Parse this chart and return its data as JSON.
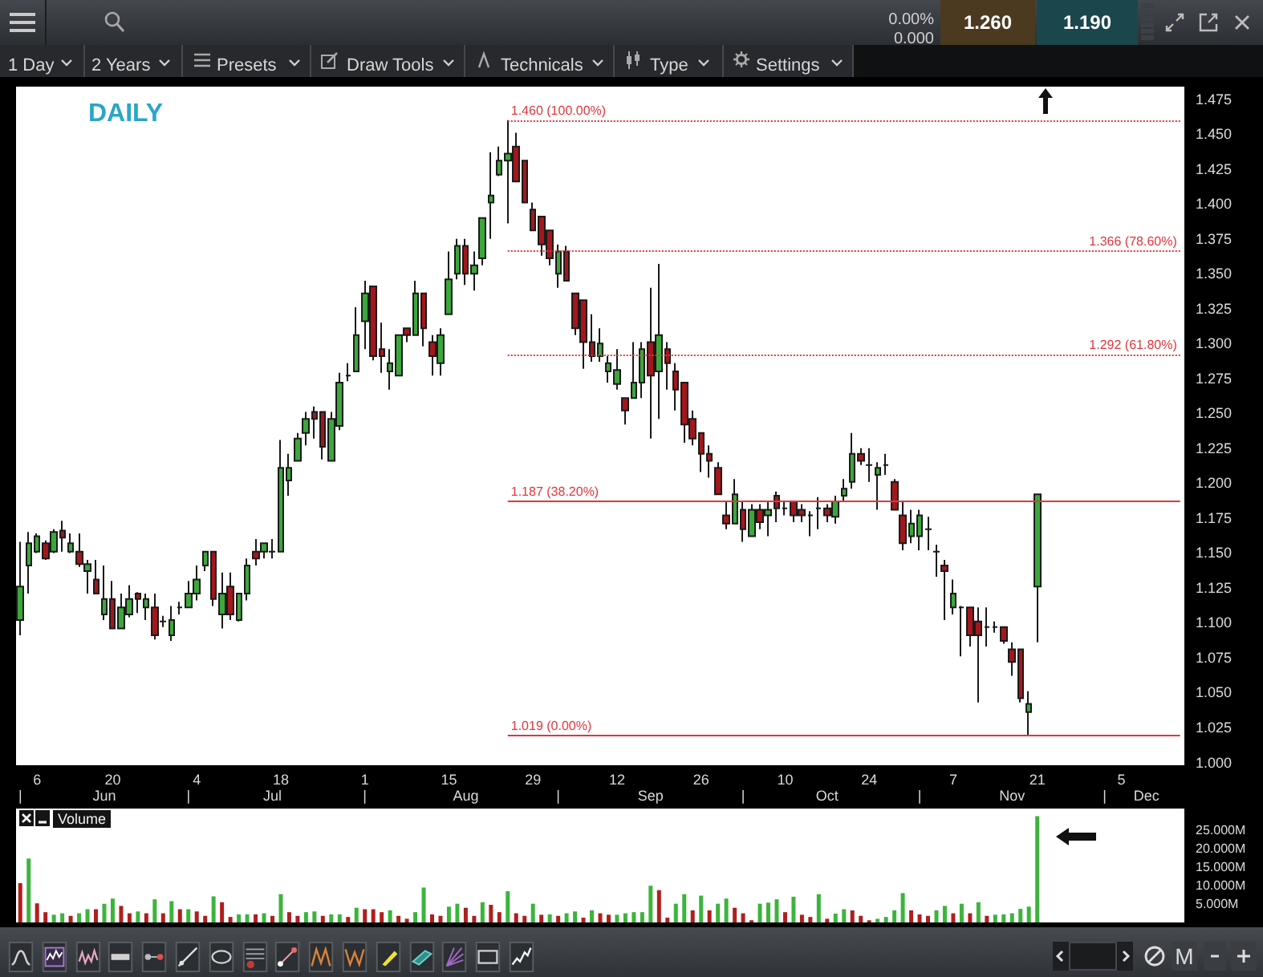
{
  "chart_data": [
    {
      "type": "candlestick",
      "title": "DAILY",
      "categories": [
        "\n|",
        null,
        "6",
        null,
        null,
        null,
        null,
        null,
        null,
        null,
        "\nJun",
        "20",
        null,
        null,
        null,
        null,
        null,
        null,
        null,
        null,
        "\n|",
        "4",
        null,
        null,
        null,
        null,
        null,
        null,
        null,
        null,
        "\nJul",
        "18",
        null,
        null,
        null,
        null,
        null,
        null,
        null,
        null,
        null,
        "1\n|",
        null,
        null,
        null,
        null,
        null,
        null,
        null,
        null,
        null,
        "15",
        null,
        "\nAug",
        null,
        null,
        null,
        null,
        null,
        null,
        null,
        "29",
        null,
        null,
        "\n|",
        null,
        null,
        null,
        null,
        null,
        null,
        "12",
        null,
        null,
        null,
        "\nSep",
        null,
        null,
        null,
        null,
        null,
        "26",
        null,
        null,
        null,
        null,
        "\n|",
        null,
        null,
        null,
        null,
        "10",
        null,
        null,
        null,
        null,
        "\nOct",
        null,
        null,
        null,
        null,
        "24",
        null,
        null,
        null,
        null,
        null,
        "\n|",
        null,
        null,
        null,
        "7",
        null,
        null,
        null,
        null,
        null,
        null,
        "\nNov",
        null,
        null,
        "21",
        null,
        null,
        null,
        null,
        null,
        null,
        null,
        "\n|",
        null,
        "5",
        null,
        null,
        "\nDec",
        null,
        null,
        null,
        null
      ],
      "ohlc": [
        [
          1.102,
          1.158,
          1.091,
          1.126
        ],
        [
          1.141,
          1.165,
          1.121,
          1.157
        ],
        [
          1.151,
          1.164,
          1.15,
          1.162
        ],
        [
          1.157,
          1.159,
          1.145,
          1.146
        ],
        [
          1.151,
          1.167,
          1.15,
          1.165
        ],
        [
          1.166,
          1.173,
          1.151,
          1.161
        ],
        [
          1.151,
          1.164,
          1.15,
          1.157
        ],
        [
          1.151,
          1.164,
          1.14,
          1.142
        ],
        [
          1.137,
          1.145,
          1.121,
          1.142
        ],
        [
          1.131,
          1.145,
          1.121,
          1.121
        ],
        [
          1.106,
          1.141,
          1.102,
          1.117
        ],
        [
          1.117,
          1.13,
          1.096,
          1.096
        ],
        [
          1.096,
          1.121,
          1.096,
          1.111
        ],
        [
          1.106,
          1.127,
          1.104,
          1.117
        ],
        [
          1.121,
          1.122,
          1.107,
          1.117
        ],
        [
          1.111,
          1.121,
          1.102,
          1.117
        ],
        [
          1.111,
          1.121,
          1.088,
          1.091
        ],
        [
          1.101,
          1.105,
          1.097,
          1.101
        ],
        [
          1.091,
          1.112,
          1.087,
          1.102
        ],
        [
          1.111,
          1.115,
          1.106,
          1.111
        ],
        [
          1.111,
          1.13,
          1.111,
          1.121
        ],
        [
          1.121,
          1.141,
          1.116,
          1.131
        ],
        [
          1.141,
          1.151,
          1.137,
          1.151
        ],
        [
          1.151,
          1.151,
          1.112,
          1.117
        ],
        [
          1.106,
          1.136,
          1.096,
          1.121
        ],
        [
          1.126,
          1.136,
          1.102,
          1.106
        ],
        [
          1.102,
          1.121,
          1.101,
          1.121
        ],
        [
          1.121,
          1.146,
          1.116,
          1.141
        ],
        [
          1.151,
          1.16,
          1.141,
          1.146
        ],
        [
          1.151,
          1.157,
          1.146,
          1.157
        ],
        [
          1.151,
          1.16,
          1.146,
          1.151
        ],
        [
          1.151,
          1.231,
          1.151,
          1.211
        ],
        [
          1.202,
          1.221,
          1.191,
          1.211
        ],
        [
          1.216,
          1.236,
          1.216,
          1.232
        ],
        [
          1.236,
          1.251,
          1.227,
          1.246
        ],
        [
          1.251,
          1.255,
          1.232,
          1.246
        ],
        [
          1.251,
          1.251,
          1.217,
          1.226
        ],
        [
          1.216,
          1.251,
          1.216,
          1.246
        ],
        [
          1.241,
          1.279,
          1.238,
          1.272
        ],
        [
          1.277,
          1.286,
          1.273,
          1.277
        ],
        [
          1.28,
          1.326,
          1.28,
          1.306
        ],
        [
          1.316,
          1.345,
          1.296,
          1.336
        ],
        [
          1.341,
          1.341,
          1.288,
          1.291
        ],
        [
          1.296,
          1.315,
          1.279,
          1.291
        ],
        [
          1.28,
          1.296,
          1.267,
          1.286
        ],
        [
          1.277,
          1.306,
          1.277,
          1.306
        ],
        [
          1.311,
          1.311,
          1.301,
          1.306
        ],
        [
          1.306,
          1.345,
          1.306,
          1.336
        ],
        [
          1.336,
          1.336,
          1.298,
          1.311
        ],
        [
          1.301,
          1.306,
          1.277,
          1.291
        ],
        [
          1.286,
          1.311,
          1.277,
          1.306
        ],
        [
          1.321,
          1.366,
          1.321,
          1.346
        ],
        [
          1.35,
          1.375,
          1.346,
          1.37
        ],
        [
          1.37,
          1.375,
          1.342,
          1.35
        ],
        [
          1.35,
          1.366,
          1.338,
          1.356
        ],
        [
          1.361,
          1.39,
          1.356,
          1.39
        ],
        [
          1.401,
          1.437,
          1.375,
          1.406
        ],
        [
          1.421,
          1.441,
          1.42,
          1.431
        ],
        [
          1.431,
          1.46,
          1.386,
          1.436
        ],
        [
          1.441,
          1.451,
          1.416,
          1.416
        ],
        [
          1.431,
          1.431,
          1.401,
          1.401
        ],
        [
          1.396,
          1.401,
          1.381,
          1.381
        ],
        [
          1.391,
          1.391,
          1.363,
          1.371
        ],
        [
          1.381,
          1.381,
          1.356,
          1.361
        ],
        [
          1.35,
          1.371,
          1.34,
          1.366
        ],
        [
          1.366,
          1.37,
          1.345,
          1.345
        ],
        [
          1.336,
          1.336,
          1.306,
          1.311
        ],
        [
          1.331,
          1.331,
          1.282,
          1.301
        ],
        [
          1.301,
          1.321,
          1.287,
          1.291
        ],
        [
          1.291,
          1.311,
          1.287,
          1.3
        ],
        [
          1.28,
          1.291,
          1.272,
          1.286
        ],
        [
          1.271,
          1.296,
          1.267,
          1.281
        ],
        [
          1.261,
          1.261,
          1.242,
          1.252
        ],
        [
          1.261,
          1.301,
          1.261,
          1.272
        ],
        [
          1.272,
          1.301,
          1.261,
          1.296
        ],
        [
          1.301,
          1.34,
          1.232,
          1.277
        ],
        [
          1.28,
          1.357,
          1.246,
          1.306
        ],
        [
          1.296,
          1.301,
          1.267,
          1.286
        ],
        [
          1.28,
          1.286,
          1.252,
          1.267
        ],
        [
          1.272,
          1.272,
          1.229,
          1.242
        ],
        [
          1.246,
          1.252,
          1.227,
          1.232
        ],
        [
          1.236,
          1.236,
          1.208,
          1.221
        ],
        [
          1.221,
          1.227,
          1.204,
          1.216
        ],
        [
          1.211,
          1.215,
          1.192,
          1.192
        ],
        [
          1.177,
          1.187,
          1.167,
          1.171
        ],
        [
          1.171,
          1.203,
          1.171,
          1.192
        ],
        [
          1.181,
          1.187,
          1.158,
          1.167
        ],
        [
          1.162,
          1.185,
          1.162,
          1.181
        ],
        [
          1.181,
          1.185,
          1.167,
          1.172
        ],
        [
          1.177,
          1.187,
          1.162,
          1.181
        ],
        [
          1.191,
          1.194,
          1.172,
          1.182
        ],
        [
          1.182,
          1.187,
          1.177,
          1.182
        ],
        [
          1.187,
          1.187,
          1.172,
          1.177
        ],
        [
          1.181,
          1.185,
          1.172,
          1.177
        ],
        [
          1.177,
          1.18,
          1.162,
          1.177
        ],
        [
          1.182,
          1.19,
          1.167,
          1.182
        ],
        [
          1.182,
          1.185,
          1.172,
          1.177
        ],
        [
          1.176,
          1.191,
          1.171,
          1.187
        ],
        [
          1.191,
          1.203,
          1.187,
          1.196
        ],
        [
          1.201,
          1.236,
          1.196,
          1.221
        ],
        [
          1.221,
          1.225,
          1.213,
          1.216
        ],
        [
          1.213,
          1.225,
          1.201,
          1.213
        ],
        [
          1.206,
          1.215,
          1.181,
          1.211
        ],
        [
          1.213,
          1.221,
          1.206,
          1.213
        ],
        [
          1.201,
          1.203,
          1.181,
          1.181
        ],
        [
          1.177,
          1.187,
          1.152,
          1.157
        ],
        [
          1.162,
          1.181,
          1.157,
          1.171
        ],
        [
          1.162,
          1.181,
          1.152,
          1.177
        ],
        [
          1.167,
          1.176,
          1.152,
          1.167
        ],
        [
          1.151,
          1.156,
          1.133,
          1.151
        ],
        [
          1.141,
          1.145,
          1.102,
          1.137
        ],
        [
          1.111,
          1.131,
          1.106,
          1.121
        ],
        [
          1.111,
          1.112,
          1.076,
          1.111
        ],
        [
          1.111,
          1.111,
          1.083,
          1.091
        ],
        [
          1.101,
          1.111,
          1.043,
          1.091
        ],
        [
          1.097,
          1.111,
          1.083,
          1.097
        ],
        [
          1.097,
          1.101,
          1.093,
          1.097
        ],
        [
          1.097,
          1.097,
          1.085,
          1.087
        ],
        [
          1.081,
          1.086,
          1.062,
          1.072
        ],
        [
          1.081,
          1.081,
          1.043,
          1.046
        ],
        [
          1.036,
          1.051,
          1.019,
          1.042
        ],
        [
          1.126,
          1.192,
          1.086,
          1.192
        ],
        null,
        null,
        null,
        null,
        null,
        null,
        null,
        null,
        null,
        null,
        null,
        null,
        null,
        null,
        null,
        null,
        null
      ],
      "colors": [
        "#3aa83a",
        "#3aa83a",
        "#3aa83a",
        "#a3171c",
        "#3aa83a",
        "#a3171c",
        "#3aa83a",
        "#a3171c",
        "#3aa83a",
        "#a3171c",
        "#3aa83a",
        "#a3171c",
        "#3aa83a",
        "#3aa83a",
        "#a3171c",
        "#3aa83a",
        "#a3171c",
        "#1a1a1a",
        "#3aa83a",
        "#1a1a1a",
        "#3aa83a",
        "#3aa83a",
        "#3aa83a",
        "#a3171c",
        "#3aa83a",
        "#a3171c",
        "#3aa83a",
        "#3aa83a",
        "#a3171c",
        "#3aa83a",
        "#1a1a1a",
        "#3aa83a",
        "#3aa83a",
        "#3aa83a",
        "#3aa83a",
        "#a3171c",
        "#a3171c",
        "#3aa83a",
        "#3aa83a",
        "#1a1a1a",
        "#3aa83a",
        "#3aa83a",
        "#a3171c",
        "#a3171c",
        "#3aa83a",
        "#3aa83a",
        "#a3171c",
        "#3aa83a",
        "#a3171c",
        "#a3171c",
        "#3aa83a",
        "#3aa83a",
        "#3aa83a",
        "#a3171c",
        "#3aa83a",
        "#3aa83a",
        "#3aa83a",
        "#3aa83a",
        "#3aa83a",
        "#a3171c",
        "#a3171c",
        "#a3171c",
        "#a3171c",
        "#a3171c",
        "#3aa83a",
        "#a3171c",
        "#a3171c",
        "#a3171c",
        "#a3171c",
        "#3aa83a",
        "#3aa83a",
        "#3aa83a",
        "#a3171c",
        "#3aa83a",
        "#3aa83a",
        "#a3171c",
        "#3aa83a",
        "#a3171c",
        "#a3171c",
        "#a3171c",
        "#a3171c",
        "#a3171c",
        "#a3171c",
        "#a3171c",
        "#a3171c",
        "#3aa83a",
        "#a3171c",
        "#3aa83a",
        "#a3171c",
        "#3aa83a",
        "#a3171c",
        "#1a1a1a",
        "#a3171c",
        "#a3171c",
        "#1a1a1a",
        "#1a1a1a",
        "#a3171c",
        "#3aa83a",
        "#3aa83a",
        "#3aa83a",
        "#a3171c",
        "#1a1a1a",
        "#3aa83a",
        "#1a1a1a",
        "#a3171c",
        "#a3171c",
        "#3aa83a",
        "#3aa83a",
        "#1a1a1a",
        "#1a1a1a",
        "#a3171c",
        "#3aa83a",
        "#1a1a1a",
        "#a3171c",
        "#a3171c",
        "#1a1a1a",
        "#1a1a1a",
        "#a3171c",
        "#a3171c",
        "#a3171c",
        "#3aa83a",
        "#3aa83a",
        null,
        null,
        null,
        null,
        null,
        null,
        null,
        null,
        null,
        null,
        null,
        null,
        null,
        null,
        null,
        null,
        null
      ],
      "ylim": [
        0.998,
        1.484
      ],
      "yticks": [
        {
          "value": 1,
          "label": "1.000"
        },
        {
          "value": 1.025,
          "label": "1.025"
        },
        {
          "value": 1.05,
          "label": "1.050"
        },
        {
          "value": 1.075,
          "label": "1.075"
        },
        {
          "value": 1.1,
          "label": "1.100"
        },
        {
          "value": 1.125,
          "label": "1.125"
        },
        {
          "value": 1.15,
          "label": "1.150"
        },
        {
          "value": 1.175,
          "label": "1.175"
        },
        {
          "value": 1.2,
          "label": "1.200"
        },
        {
          "value": 1.225,
          "label": "1.225"
        },
        {
          "value": 1.25,
          "label": "1.250"
        },
        {
          "value": 1.275,
          "label": "1.275"
        },
        {
          "value": 1.3,
          "label": "1.300"
        },
        {
          "value": 1.325,
          "label": "1.325"
        },
        {
          "value": 1.35,
          "label": "1.350"
        },
        {
          "value": 1.375,
          "label": "1.375"
        },
        {
          "value": 1.4,
          "label": "1.400"
        },
        {
          "value": 1.425,
          "label": "1.425"
        },
        {
          "value": 1.45,
          "label": "1.450"
        },
        {
          "value": 1.475,
          "label": "1.475"
        }
      ],
      "ref_lines": [
        {
          "axis": "y",
          "value": 1.46,
          "label": "1.460 (100.00%)",
          "color": "#e2363c",
          "line_style": "dotted"
        },
        {
          "axis": "y",
          "value": 1.366,
          "label": "1.366 (78.60%)",
          "color": "#e2363c",
          "line_style": "dotted"
        },
        {
          "axis": "y",
          "value": 1.292,
          "label": "1.292 (61.80%)",
          "color": "#e2363c",
          "line_style": "dotted"
        },
        {
          "axis": "y",
          "value": 1.187,
          "label": "1.187 (38.20%)",
          "color": "#e2363c",
          "line_style": "solid"
        },
        {
          "axis": "y",
          "value": 1.019,
          "label": "1.019 (0.00%)",
          "color": "#e2363c",
          "line_style": "solid"
        }
      ],
      "annotations": [
        "0.00%",
        "0.000",
        "1.260",
        "1.190",
        "1 Day",
        "2 Years",
        "Presets",
        "Draw Tools",
        "Technicals",
        "Type",
        "Settings",
        "M"
      ]
    },
    {
      "type": "bar",
      "title": "Volume",
      "tick_labels": "y",
      "categories": [
        null,
        null,
        null,
        null,
        null,
        null,
        null,
        null,
        null,
        null,
        null,
        null,
        null,
        null,
        null,
        null,
        null,
        null,
        null,
        null,
        null,
        null,
        null,
        null,
        null,
        null,
        null,
        null,
        null,
        null,
        null,
        null,
        null,
        null,
        null,
        null,
        null,
        null,
        null,
        null,
        null,
        null,
        null,
        null,
        null,
        null,
        null,
        null,
        null,
        null,
        null,
        null,
        null,
        null,
        null,
        null,
        null,
        null,
        null,
        null,
        null,
        null,
        null,
        null,
        null,
        null,
        null,
        null,
        null,
        null,
        null,
        null,
        null,
        null,
        null,
        null,
        null,
        null,
        null,
        null,
        null,
        null,
        null,
        null,
        null,
        null,
        null,
        null,
        null,
        null,
        null,
        null,
        null,
        null,
        null,
        null,
        null,
        null,
        null,
        null,
        null,
        null,
        null,
        null,
        null,
        null,
        null,
        null,
        null,
        null,
        null,
        null,
        null,
        null,
        null,
        null,
        null,
        null,
        null,
        null,
        null,
        null,
        null,
        null,
        null,
        null,
        null,
        null,
        null,
        null,
        null,
        null,
        null,
        null,
        null,
        null,
        null,
        null,
        null
      ],
      "values": [
        10.7,
        17.4,
        5.2,
        2.8,
        2.1,
        2.5,
        1.8,
        2.5,
        3.6,
        3.6,
        5.1,
        6.5,
        4.5,
        2.5,
        3.0,
        2.5,
        6.3,
        2.5,
        5.8,
        3.6,
        3.6,
        3.0,
        1.8,
        7.1,
        5.5,
        1.5,
        2.2,
        2.2,
        2.2,
        2.5,
        1.8,
        7.7,
        2.8,
        1.8,
        2.8,
        3.0,
        1.8,
        2.2,
        2.2,
        1.5,
        4.0,
        3.6,
        3.6,
        2.8,
        3.3,
        1.8,
        1.0,
        2.8,
        9.5,
        2.2,
        1.8,
        4.3,
        5.1,
        4.0,
        1.8,
        5.5,
        4.8,
        2.8,
        8.5,
        2.5,
        1.8,
        5.1,
        2.1,
        2.2,
        1.8,
        2.5,
        3.0,
        1.3,
        3.3,
        2.5,
        2.1,
        2.1,
        2.5,
        2.8,
        2.8,
        10.0,
        8.8,
        1.3,
        5.1,
        7.7,
        3.3,
        7.3,
        3.3,
        5.1,
        6.5,
        4.0,
        2.5,
        0.6,
        5.1,
        5.4,
        6.3,
        2.8,
        7.0,
        2.1,
        1.5,
        7.7,
        1.0,
        2.4,
        3.6,
        3.3,
        1.8,
        0.6,
        1.0,
        1.5,
        3.3,
        8.0,
        3.3,
        2.2,
        1.8,
        3.3,
        4.5,
        2.5,
        5.1,
        2.5,
        5.5,
        1.8,
        2.1,
        2.2,
        2.5,
        3.7,
        4.3,
        28.9,
        null,
        null,
        null,
        null,
        null,
        null,
        null,
        null,
        null,
        null,
        null,
        null,
        null,
        null,
        null,
        null,
        null
      ],
      "colors": [
        "#b01e1e",
        "#3cb43c",
        "#b01e1e",
        "#b01e1e",
        "#3cb43c",
        "#3cb43c",
        "#b01e1e",
        "#3cb43c",
        "#3cb43c",
        "#b01e1e",
        "#3cb43c",
        "#3cb43c",
        "#b01e1e",
        "#b01e1e",
        "#3cb43c",
        "#b01e1e",
        "#3cb43c",
        "#b01e1e",
        "#3cb43c",
        "#b01e1e",
        "#3cb43c",
        "#b01e1e",
        "#b01e1e",
        "#3cb43c",
        "#b01e1e",
        "#b01e1e",
        "#3cb43c",
        "#3cb43c",
        "#b01e1e",
        "#3cb43c",
        "#b01e1e",
        "#3cb43c",
        "#b01e1e",
        "#b01e1e",
        "#3cb43c",
        "#3cb43c",
        "#b01e1e",
        "#3cb43c",
        "#3cb43c",
        "#b01e1e",
        "#3cb43c",
        "#b01e1e",
        "#b01e1e",
        "#b01e1e",
        "#3cb43c",
        "#b01e1e",
        "#b01e1e",
        "#3cb43c",
        "#3cb43c",
        "#b01e1e",
        "#b01e1e",
        "#3cb43c",
        "#3cb43c",
        "#b01e1e",
        "#b01e1e",
        "#3cb43c",
        "#b01e1e",
        "#b01e1e",
        "#3cb43c",
        "#b01e1e",
        "#b01e1e",
        "#3cb43c",
        "#b01e1e",
        "#3cb43c",
        "#b01e1e",
        "#3cb43c",
        "#3cb43c",
        "#b01e1e",
        "#3cb43c",
        "#b01e1e",
        "#b01e1e",
        "#3cb43c",
        "#3cb43c",
        "#3cb43c",
        "#3cb43c",
        "#3cb43c",
        "#b01e1e",
        "#b01e1e",
        "#3cb43c",
        "#3cb43c",
        "#b01e1e",
        "#3cb43c",
        "#b01e1e",
        "#3cb43c",
        "#3cb43c",
        "#b01e1e",
        "#b01e1e",
        "#b01e1e",
        "#3cb43c",
        "#3cb43c",
        "#3cb43c",
        "#b01e1e",
        "#3cb43c",
        "#b01e1e",
        "#b01e1e",
        "#3cb43c",
        "#b01e1e",
        "#3cb43c",
        "#3cb43c",
        "#b01e1e",
        "#b01e1e",
        "#b01e1e",
        "#3cb43c",
        "#3cb43c",
        "#3cb43c",
        "#3cb43c",
        "#b01e1e",
        "#b01e1e",
        "#b01e1e",
        "#3cb43c",
        "#3cb43c",
        "#b01e1e",
        "#3cb43c",
        "#b01e1e",
        "#3cb43c",
        "#b01e1e",
        "#3cb43c",
        "#3cb43c",
        "#3cb43c",
        "#3cb43c",
        "#3cb43c",
        "#3cb43c",
        null,
        null,
        null,
        null,
        null,
        null,
        null,
        null,
        null,
        null,
        null,
        null,
        null,
        null,
        null,
        null,
        null
      ],
      "ylim": [
        0,
        31
      ],
      "yticks": [
        {
          "value": 5,
          "label": "5.000M"
        },
        {
          "value": 10,
          "label": "10.000M"
        },
        {
          "value": 15,
          "label": "15.000M"
        },
        {
          "value": 20,
          "label": "20.000M"
        },
        {
          "value": 25,
          "label": "25.000M"
        }
      ]
    }
  ]
}
